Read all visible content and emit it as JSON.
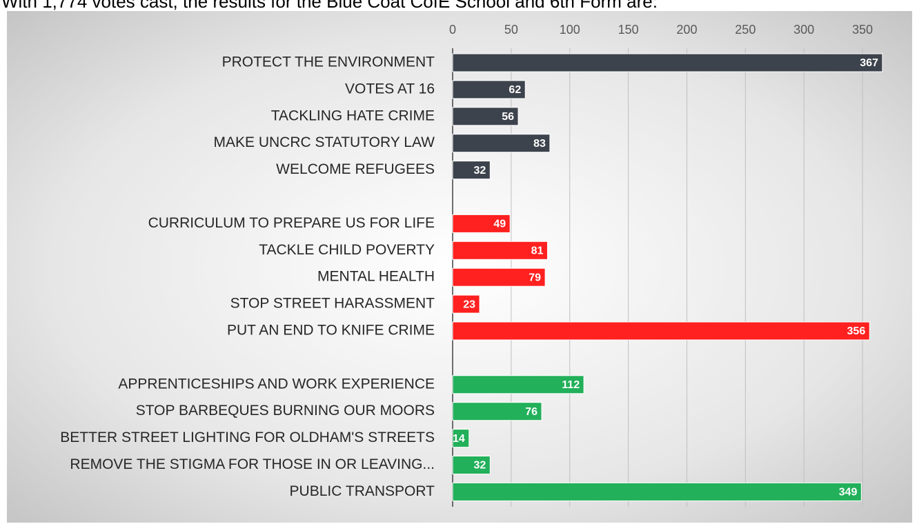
{
  "chart_data": {
    "type": "hbar",
    "title": "With 1,774 votes cast, the results for the Blue Coat CofE School and 6th Form are:",
    "categories": [
      "PROTECT THE ENVIRONMENT",
      "VOTES AT 16",
      "TACKLING HATE CRIME",
      "MAKE UNCRC STATUTORY LAW",
      "WELCOME REFUGEES",
      null,
      "CURRICULUM TO PREPARE US FOR LIFE",
      "TACKLE CHILD POVERTY",
      "MENTAL HEALTH",
      "STOP STREET HARASSMENT",
      "PUT AN END TO KNIFE CRIME",
      null,
      "APPRENTICESHIPS AND WORK EXPERIENCE",
      "STOP BARBEQUES BURNING OUR MOORS",
      "BETTER STREET LIGHTING FOR OLDHAM'S STREETS",
      "REMOVE THE STIGMA FOR THOSE IN OR LEAVING...",
      "PUBLIC TRANSPORT"
    ],
    "values": [
      367,
      62,
      56,
      83,
      32,
      null,
      49,
      81,
      79,
      23,
      356,
      null,
      112,
      76,
      14,
      32,
      349
    ],
    "colors": [
      "#3d434c",
      "#3d434c",
      "#3d434c",
      "#3d434c",
      "#3d434c",
      null,
      "#ff2020",
      "#ff2020",
      "#ff2020",
      "#ff2020",
      "#ff2020",
      null,
      "#22b05a",
      "#22b05a",
      "#22b05a",
      "#22b05a",
      "#22b05a"
    ],
    "xlim": [
      0,
      370
    ],
    "xticks": [
      0,
      50,
      100,
      150,
      200,
      250,
      300,
      350
    ],
    "grid": true
  }
}
